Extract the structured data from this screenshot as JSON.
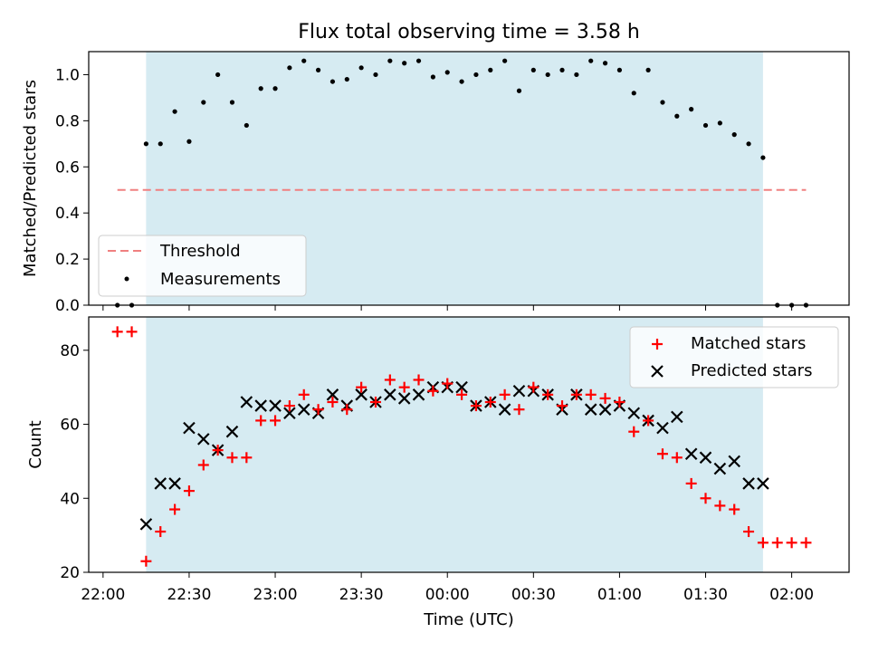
{
  "chart_data": [
    {
      "type": "scatter",
      "title": "Flux total observing time = 3.58 h",
      "xlabel": "",
      "ylabel": "Matched/Predicted stars",
      "ylim": [
        0,
        1.1
      ],
      "yticks": [
        0.0,
        0.2,
        0.4,
        0.6,
        0.8,
        1.0
      ],
      "ytick_labels": [
        "0.0",
        "0.2",
        "0.4",
        "0.6",
        "0.8",
        "1.0"
      ],
      "grid": false,
      "legend_position": "lower-left",
      "observing_window": [
        "22:15",
        "01:50"
      ],
      "threshold": {
        "name": "Threshold",
        "value": 0.5,
        "x_range": [
          "22:05",
          "02:05"
        ],
        "color": "#f08080"
      },
      "measurements": {
        "name": "Measurements",
        "color": "#000000",
        "x": [
          "22:05",
          "22:10",
          "22:15",
          "22:20",
          "22:25",
          "22:30",
          "22:35",
          "22:40",
          "22:45",
          "22:50",
          "22:55",
          "23:00",
          "23:05",
          "23:10",
          "23:15",
          "23:20",
          "23:25",
          "23:30",
          "23:35",
          "23:40",
          "23:45",
          "23:50",
          "23:55",
          "00:00",
          "00:05",
          "00:10",
          "00:15",
          "00:20",
          "00:25",
          "00:30",
          "00:35",
          "00:40",
          "00:45",
          "00:50",
          "00:55",
          "01:00",
          "01:05",
          "01:10",
          "01:15",
          "01:20",
          "01:25",
          "01:30",
          "01:35",
          "01:40",
          "01:45",
          "01:50",
          "01:55",
          "02:00",
          "02:05"
        ],
        "y": [
          0.0,
          0.0,
          0.7,
          0.7,
          0.84,
          0.71,
          0.88,
          1.0,
          0.88,
          0.78,
          0.94,
          0.94,
          1.03,
          1.06,
          1.02,
          0.97,
          0.98,
          1.03,
          1.0,
          1.06,
          1.05,
          1.06,
          0.99,
          1.01,
          0.97,
          1.0,
          1.02,
          1.06,
          0.93,
          1.02,
          1.0,
          1.02,
          1.0,
          1.06,
          1.05,
          1.02,
          0.92,
          1.02,
          0.88,
          0.82,
          0.85,
          0.78,
          0.79,
          0.74,
          0.7,
          0.64,
          0.0,
          0.0,
          0.0
        ]
      }
    },
    {
      "type": "scatter",
      "title": "",
      "xlabel": "Time (UTC)",
      "ylabel": "Count",
      "ylim": [
        20,
        89
      ],
      "yticks": [
        20,
        40,
        60,
        80
      ],
      "ytick_labels": [
        "20",
        "40",
        "60",
        "80"
      ],
      "xlim": [
        "21:55",
        "02:20"
      ],
      "xticks": [
        "22:00",
        "22:30",
        "23:00",
        "23:30",
        "00:00",
        "00:30",
        "01:00",
        "01:30",
        "02:00"
      ],
      "grid": false,
      "legend_position": "upper-right",
      "observing_window": [
        "22:15",
        "01:50"
      ],
      "series": [
        {
          "name": "Matched stars",
          "marker": "+",
          "color": "#ff0000",
          "x": [
            "22:05",
            "22:10",
            "22:15",
            "22:20",
            "22:25",
            "22:30",
            "22:35",
            "22:40",
            "22:45",
            "22:50",
            "22:55",
            "23:00",
            "23:05",
            "23:10",
            "23:15",
            "23:20",
            "23:25",
            "23:30",
            "23:35",
            "23:40",
            "23:45",
            "23:50",
            "23:55",
            "00:00",
            "00:05",
            "00:10",
            "00:15",
            "00:20",
            "00:25",
            "00:30",
            "00:35",
            "00:40",
            "00:45",
            "00:50",
            "00:55",
            "01:00",
            "01:05",
            "01:10",
            "01:15",
            "01:20",
            "01:25",
            "01:30",
            "01:35",
            "01:40",
            "01:45",
            "01:50",
            "01:55",
            "02:00",
            "02:05"
          ],
          "y": [
            85,
            85,
            23,
            31,
            37,
            42,
            49,
            53,
            51,
            51,
            61,
            61,
            65,
            68,
            64,
            66,
            64,
            70,
            66,
            72,
            70,
            72,
            69,
            71,
            68,
            65,
            66,
            68,
            64,
            70,
            68,
            65,
            68,
            68,
            67,
            66,
            58,
            61,
            52,
            51,
            44,
            40,
            38,
            37,
            31,
            28,
            28,
            28,
            28
          ]
        },
        {
          "name": "Predicted stars",
          "marker": "x",
          "color": "#000000",
          "x": [
            "22:15",
            "22:20",
            "22:25",
            "22:30",
            "22:35",
            "22:40",
            "22:45",
            "22:50",
            "22:55",
            "23:00",
            "23:05",
            "23:10",
            "23:15",
            "23:20",
            "23:25",
            "23:30",
            "23:35",
            "23:40",
            "23:45",
            "23:50",
            "23:55",
            "00:00",
            "00:05",
            "00:10",
            "00:15",
            "00:20",
            "00:25",
            "00:30",
            "00:35",
            "00:40",
            "00:45",
            "00:50",
            "00:55",
            "01:00",
            "01:05",
            "01:10",
            "01:15",
            "01:20",
            "01:25",
            "01:30",
            "01:35",
            "01:40",
            "01:45",
            "01:50"
          ],
          "y": [
            33,
            44,
            44,
            59,
            56,
            53,
            58,
            66,
            65,
            65,
            63,
            64,
            63,
            68,
            65,
            68,
            66,
            68,
            67,
            68,
            70,
            70,
            70,
            65,
            66,
            64,
            69,
            69,
            68,
            64,
            68,
            64,
            64,
            65,
            63,
            61,
            59,
            62,
            52,
            51,
            48,
            50,
            44,
            44
          ]
        }
      ]
    }
  ]
}
